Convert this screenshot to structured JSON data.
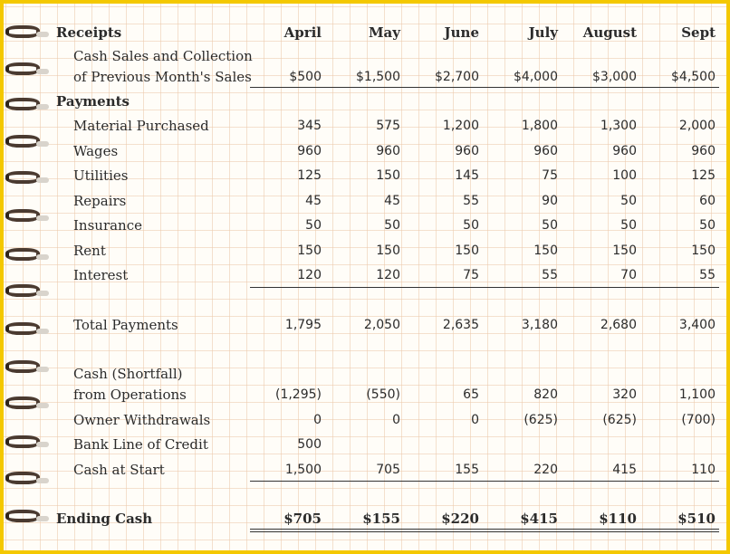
{
  "columns": [
    "April",
    "May",
    "June",
    "July",
    "August",
    "Sept"
  ],
  "sections": {
    "receipts": "Receipts",
    "payments": "Payments"
  },
  "cash_sales": {
    "label_line1": "Cash Sales and Collection",
    "label_line2": "of Previous Month's Sales",
    "values": [
      "$500",
      "$1,500",
      "$2,700",
      "$4,000",
      "$3,000",
      "$4,500"
    ]
  },
  "payment_rows": [
    {
      "label": "Material Purchased",
      "values": [
        "345",
        "575",
        "1,200",
        "1,800",
        "1,300",
        "2,000"
      ]
    },
    {
      "label": "Wages",
      "values": [
        "960",
        "960",
        "960",
        "960",
        "960",
        "960"
      ]
    },
    {
      "label": "Utilities",
      "values": [
        "125",
        "150",
        "145",
        "75",
        "100",
        "125"
      ]
    },
    {
      "label": "Repairs",
      "values": [
        "45",
        "45",
        "55",
        "90",
        "50",
        "60"
      ]
    },
    {
      "label": "Insurance",
      "values": [
        "50",
        "50",
        "50",
        "50",
        "50",
        "50"
      ]
    },
    {
      "label": "Rent",
      "values": [
        "150",
        "150",
        "150",
        "150",
        "150",
        "150"
      ]
    },
    {
      "label": "Interest",
      "values": [
        "120",
        "120",
        "75",
        "55",
        "70",
        "55"
      ]
    }
  ],
  "total_payments": {
    "label": "Total Payments",
    "values": [
      "1,795",
      "2,050",
      "2,635",
      "3,180",
      "2,680",
      "3,400"
    ]
  },
  "cash_shortfall": {
    "label_line1": "Cash (Shortfall)",
    "label_line2": "from Operations",
    "values": [
      "(1,295)",
      "(550)",
      "65",
      "820",
      "320",
      "1,100"
    ]
  },
  "owner_withdrawals": {
    "label": "Owner Withdrawals",
    "values": [
      "0",
      "0",
      "0",
      "(625)",
      "(625)",
      "(700)"
    ]
  },
  "bank_line": {
    "label": "Bank Line of Credit",
    "values": [
      "500",
      "",
      "",
      "",
      "",
      ""
    ]
  },
  "cash_at_start": {
    "label": "Cash at Start",
    "values": [
      "1,500",
      "705",
      "155",
      "220",
      "415",
      "110"
    ]
  },
  "ending_cash": {
    "label": "Ending Cash",
    "values": [
      "$705",
      "$155",
      "$220",
      "$415",
      "$110",
      "$510"
    ]
  }
}
